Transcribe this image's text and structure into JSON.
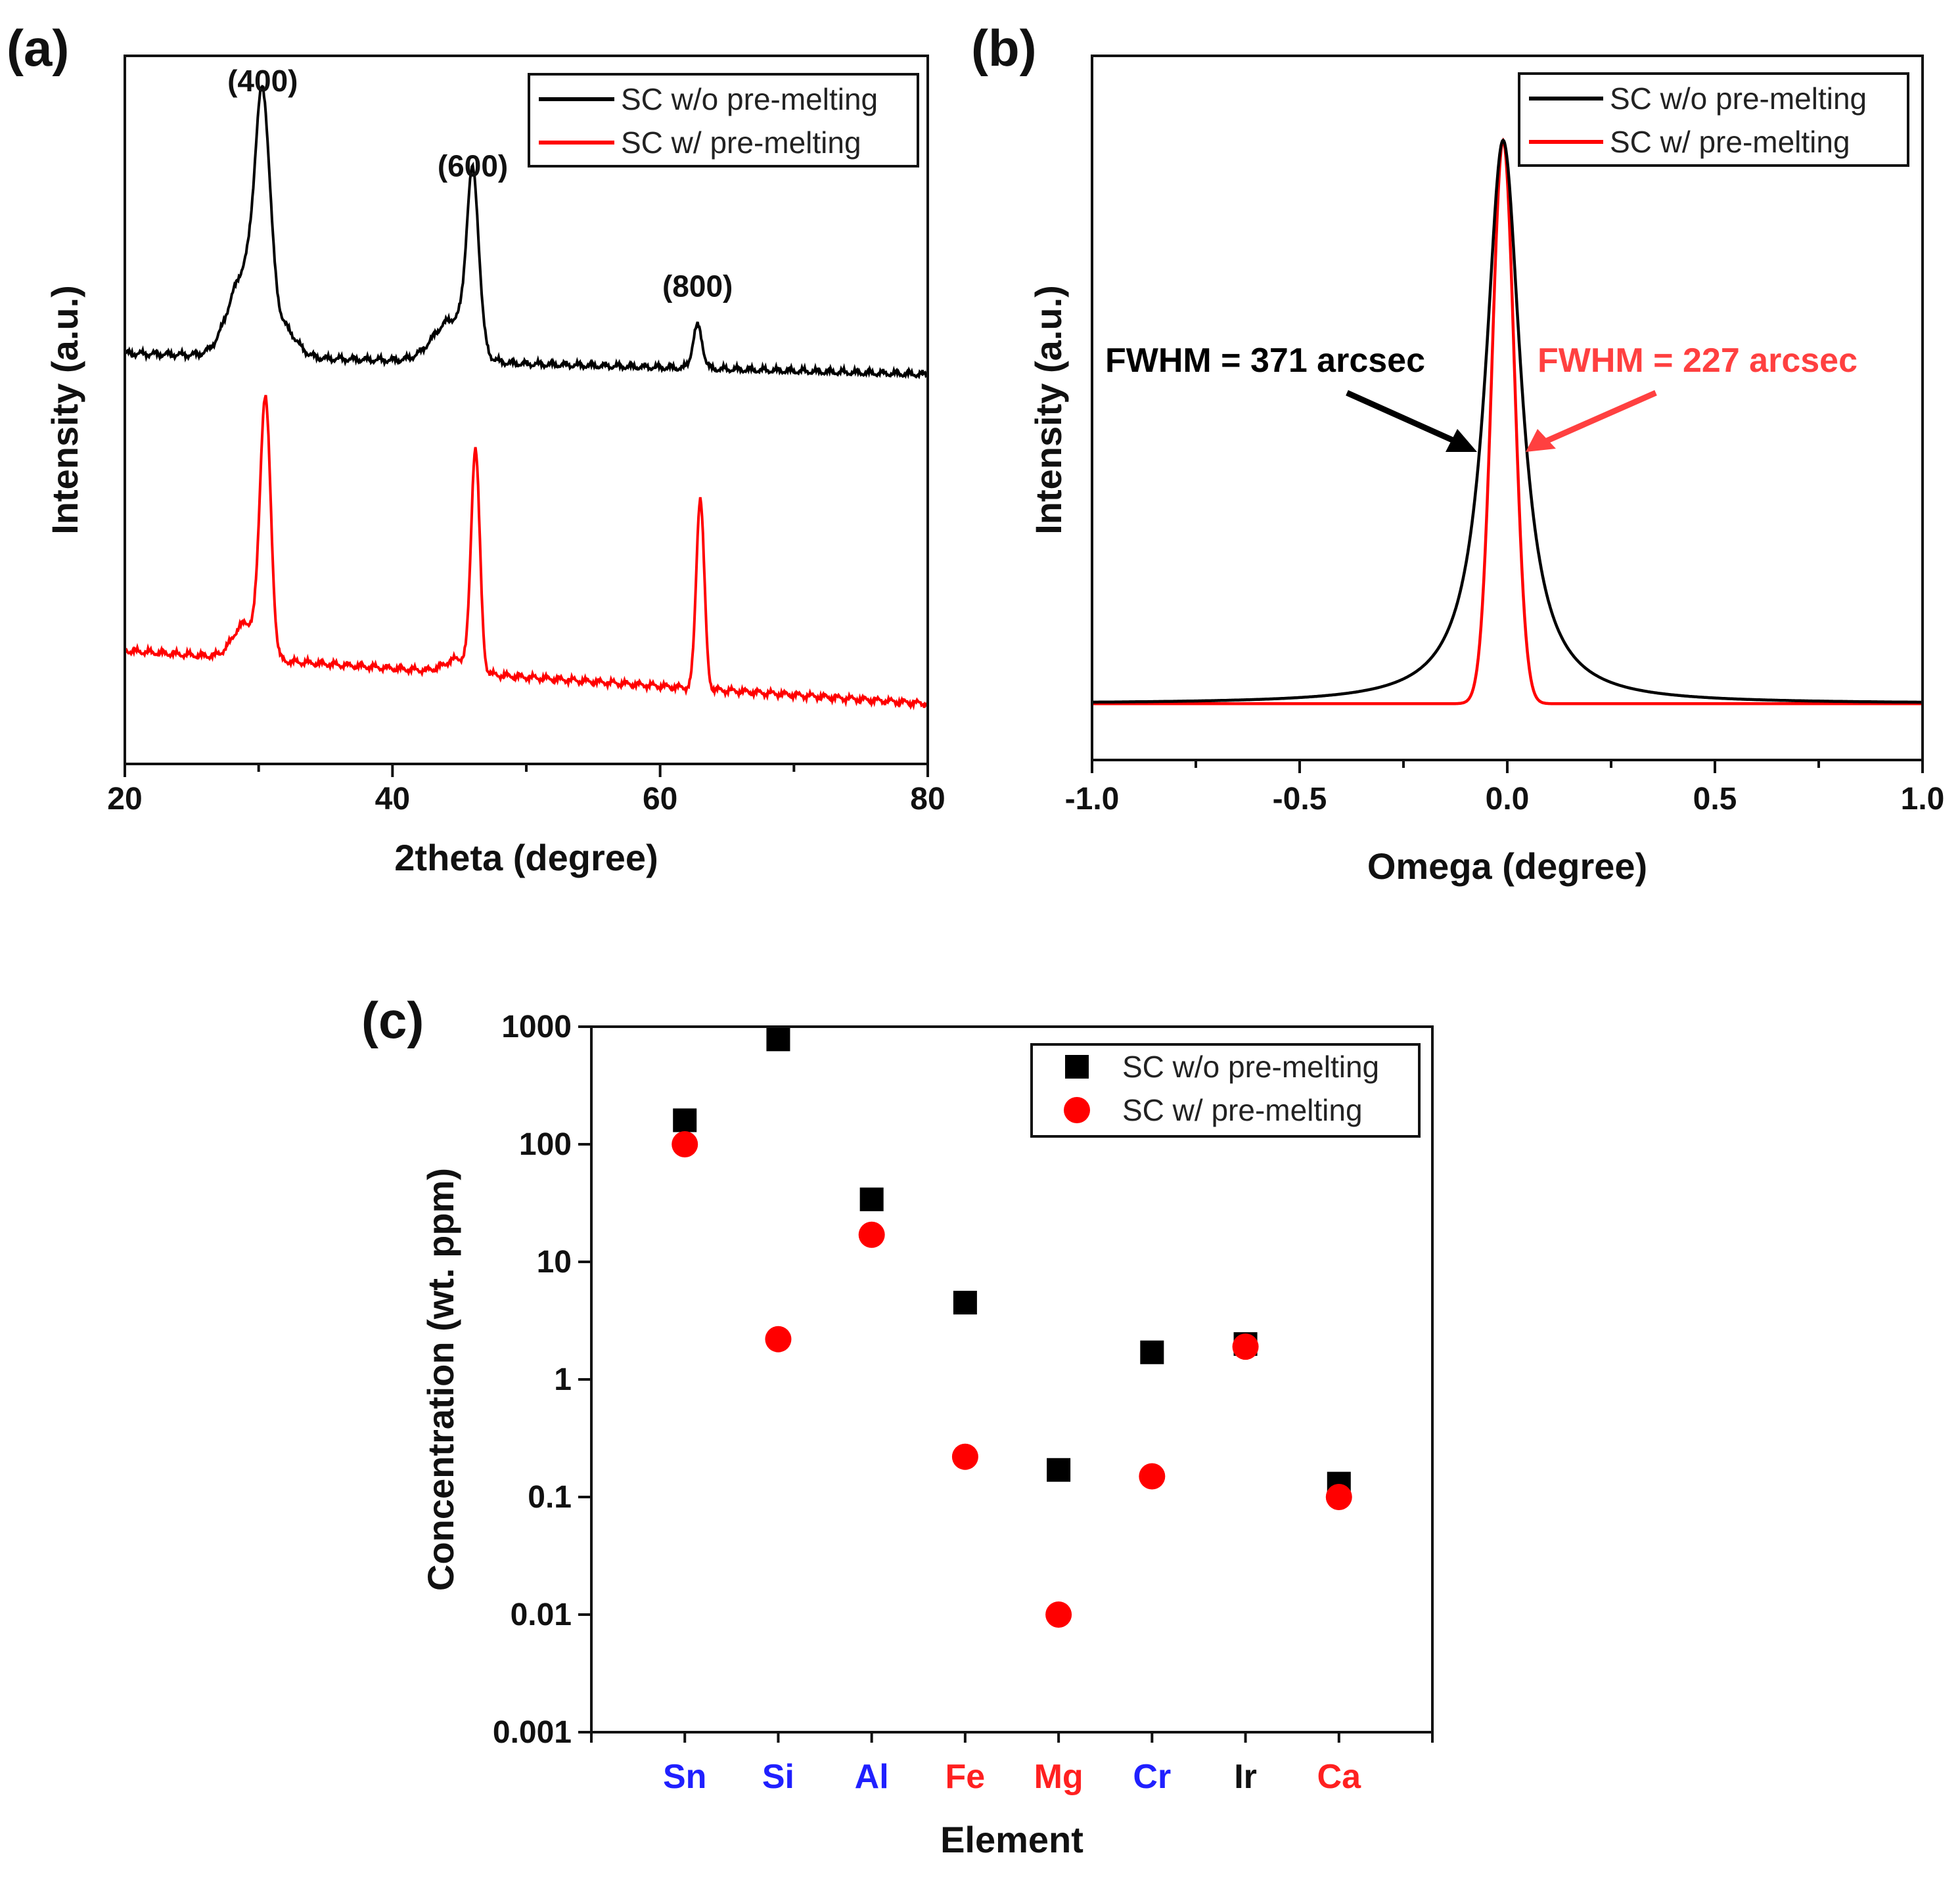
{
  "chart_data": [
    {
      "panel": "(a)",
      "type": "line",
      "xlabel": "2theta (degree)",
      "ylabel": "Intensity (a.u.)",
      "xlim": [
        20,
        80
      ],
      "x_ticks": [
        "20",
        "40",
        "60",
        "80"
      ],
      "y_ticks": false,
      "legend_position": "top-right",
      "series": [
        {
          "name": "SC w/o pre-melting",
          "color": "#000000",
          "baseline": 0.58,
          "end_level": 0.55,
          "noise": 0.006,
          "peaks": [
            {
              "x": 30.3,
              "height": 0.3,
              "width": 0.55
            },
            {
              "x": 29.0,
              "height": 0.12,
              "width": 1.2
            },
            {
              "x": 31.8,
              "height": 0.04,
              "width": 1.0
            },
            {
              "x": 46.0,
              "height": 0.24,
              "width": 0.45
            },
            {
              "x": 44.5,
              "height": 0.06,
              "width": 1.4
            },
            {
              "x": 62.8,
              "height": 0.06,
              "width": 0.35
            }
          ]
        },
        {
          "name": "SC w/ pre-melting",
          "color": "#ff0000",
          "baseline": 0.16,
          "end_level": 0.085,
          "noise": 0.006,
          "peaks": [
            {
              "x": 30.5,
              "height": 0.36,
              "width": 0.4
            },
            {
              "x": 29.0,
              "height": 0.05,
              "width": 0.9
            },
            {
              "x": 46.2,
              "height": 0.31,
              "width": 0.32
            },
            {
              "x": 45.0,
              "height": 0.02,
              "width": 1.0
            },
            {
              "x": 63.0,
              "height": 0.27,
              "width": 0.3
            }
          ]
        }
      ],
      "annotations": [
        {
          "text": "(400)",
          "x": 30.3,
          "level": 0.95
        },
        {
          "text": "(600)",
          "x": 46.0,
          "level": 0.83
        },
        {
          "text": "(800)",
          "x": 62.8,
          "level": 0.66
        }
      ]
    },
    {
      "panel": "(b)",
      "type": "line",
      "xlabel": "Omega (degree)",
      "ylabel": "Intensity (a.u.)",
      "xlim": [
        -1.0,
        1.0
      ],
      "x_ticks": [
        "-1.0",
        "-0.5",
        "0.0",
        "0.5",
        "1.0"
      ],
      "y_ticks": false,
      "legend_position": "top-right",
      "series": [
        {
          "name": "SC w/o pre-melting",
          "color": "#000000",
          "shape": "lorentzian",
          "center": -0.01,
          "fwhm": 0.103,
          "baseline": 0.08,
          "peak": 0.88
        },
        {
          "name": "SC w/ pre-melting",
          "color": "#ff0000",
          "shape": "gaussian",
          "center": -0.01,
          "fwhm": 0.063,
          "baseline": 0.08,
          "peak": 0.88
        }
      ],
      "annotations": [
        {
          "text": "FWHM = 371 arcsec",
          "color": "#000000"
        },
        {
          "text": "FWHM = 227 arcsec",
          "color": "#ff4040"
        }
      ]
    },
    {
      "panel": "(c)",
      "type": "scatter",
      "xlabel": "Element",
      "ylabel": "Concentration (wt. ppm)",
      "yscale": "log",
      "ylim": [
        0.001,
        1000
      ],
      "y_ticks": [
        "0.001",
        "0.01",
        "0.1",
        "1",
        "10",
        "100",
        "1000"
      ],
      "categories": [
        "Sn",
        "Si",
        "Al",
        "Fe",
        "Mg",
        "Cr",
        "Ir",
        "Ca"
      ],
      "category_colors": [
        "#2020ff",
        "#2020ff",
        "#2020ff",
        "#ff2020",
        "#ff2020",
        "#2020ff",
        "#111111",
        "#ff2020"
      ],
      "legend_position": "top-right",
      "series": [
        {
          "name": "SC w/o pre-melting",
          "marker": "square",
          "color": "#000000",
          "values": [
            160,
            780,
            34,
            4.5,
            0.17,
            1.7,
            2.0,
            0.13
          ]
        },
        {
          "name": "SC w/ pre-melting",
          "marker": "circle",
          "color": "#ff0000",
          "values": [
            100,
            2.2,
            17,
            0.22,
            0.01,
            0.15,
            1.9,
            0.1
          ]
        }
      ]
    }
  ]
}
